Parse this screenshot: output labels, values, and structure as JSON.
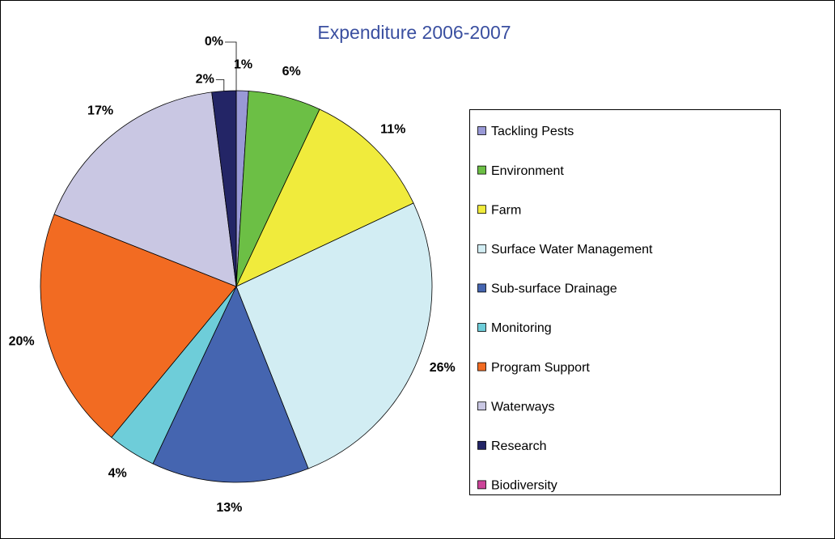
{
  "chart_data": {
    "type": "pie",
    "title": "Expenditure 2006-2007",
    "categories": [
      "Tackling Pests",
      "Environment",
      "Farm",
      "Surface Water Management",
      "Sub-surface Drainage",
      "Monitoring",
      "Program Support",
      "Waterways",
      "Research",
      "Biodiversity"
    ],
    "values": [
      1,
      6,
      11,
      26,
      13,
      4,
      20,
      17,
      2,
      0
    ],
    "value_labels": [
      "1%",
      "6%",
      "11%",
      "26%",
      "13%",
      "4%",
      "20%",
      "17%",
      "2%",
      "0%"
    ],
    "colors": [
      "#9999d6",
      "#6cbf45",
      "#f0eb3c",
      "#d2edf3",
      "#4565b0",
      "#6ecdd9",
      "#f26b22",
      "#c9c7e3",
      "#232566",
      "#cc4499"
    ],
    "legend": "right"
  }
}
